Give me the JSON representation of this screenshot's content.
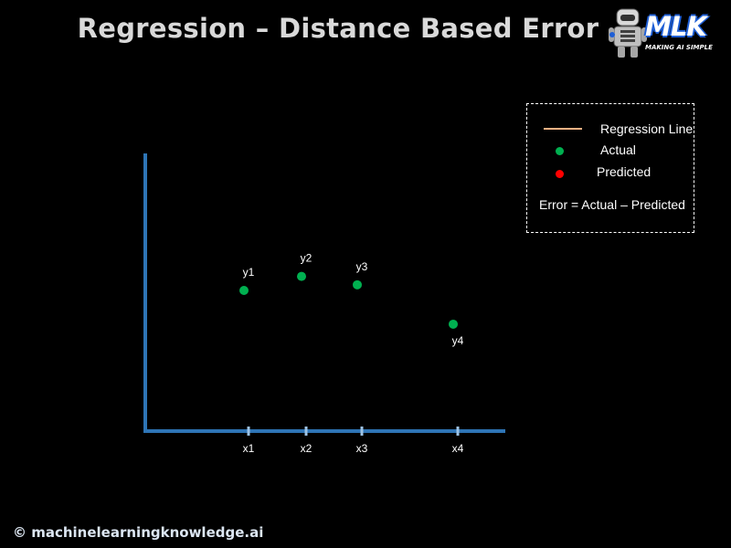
{
  "title": "Regression – Distance Based Error",
  "logo": {
    "wordmark": "MLK",
    "tagline": "MAKING AI SIMPLE",
    "icon": "robot-mascot-icon",
    "accent_color": "#1f5fd6"
  },
  "legend": {
    "regression_line_label": "Regression Line",
    "actual_label": "Actual",
    "predicted_label": "Predicted",
    "formula": "Error = Actual – Predicted",
    "regression_line_color": "#f4b183",
    "actual_color": "#00b050",
    "predicted_color": "#ff0000"
  },
  "chart_data": {
    "type": "scatter",
    "x_ticks": [
      "x1",
      "x2",
      "x3",
      "x4"
    ],
    "points": [
      {
        "label": "y1",
        "x": "x1",
        "y": 5.0
      },
      {
        "label": "y2",
        "x": "x2",
        "y": 5.5
      },
      {
        "label": "y3",
        "x": "x3",
        "y": 5.2
      },
      {
        "label": "y4",
        "x": "x4",
        "y": 3.8
      }
    ],
    "ylim": [
      0,
      10
    ],
    "grid": false,
    "legend_position": "top-right",
    "axis_color": "#2e75b6",
    "tick_color": "#9dc3e6",
    "point_color": "#00b050"
  },
  "footer": "© machinelearningknowledge.ai"
}
